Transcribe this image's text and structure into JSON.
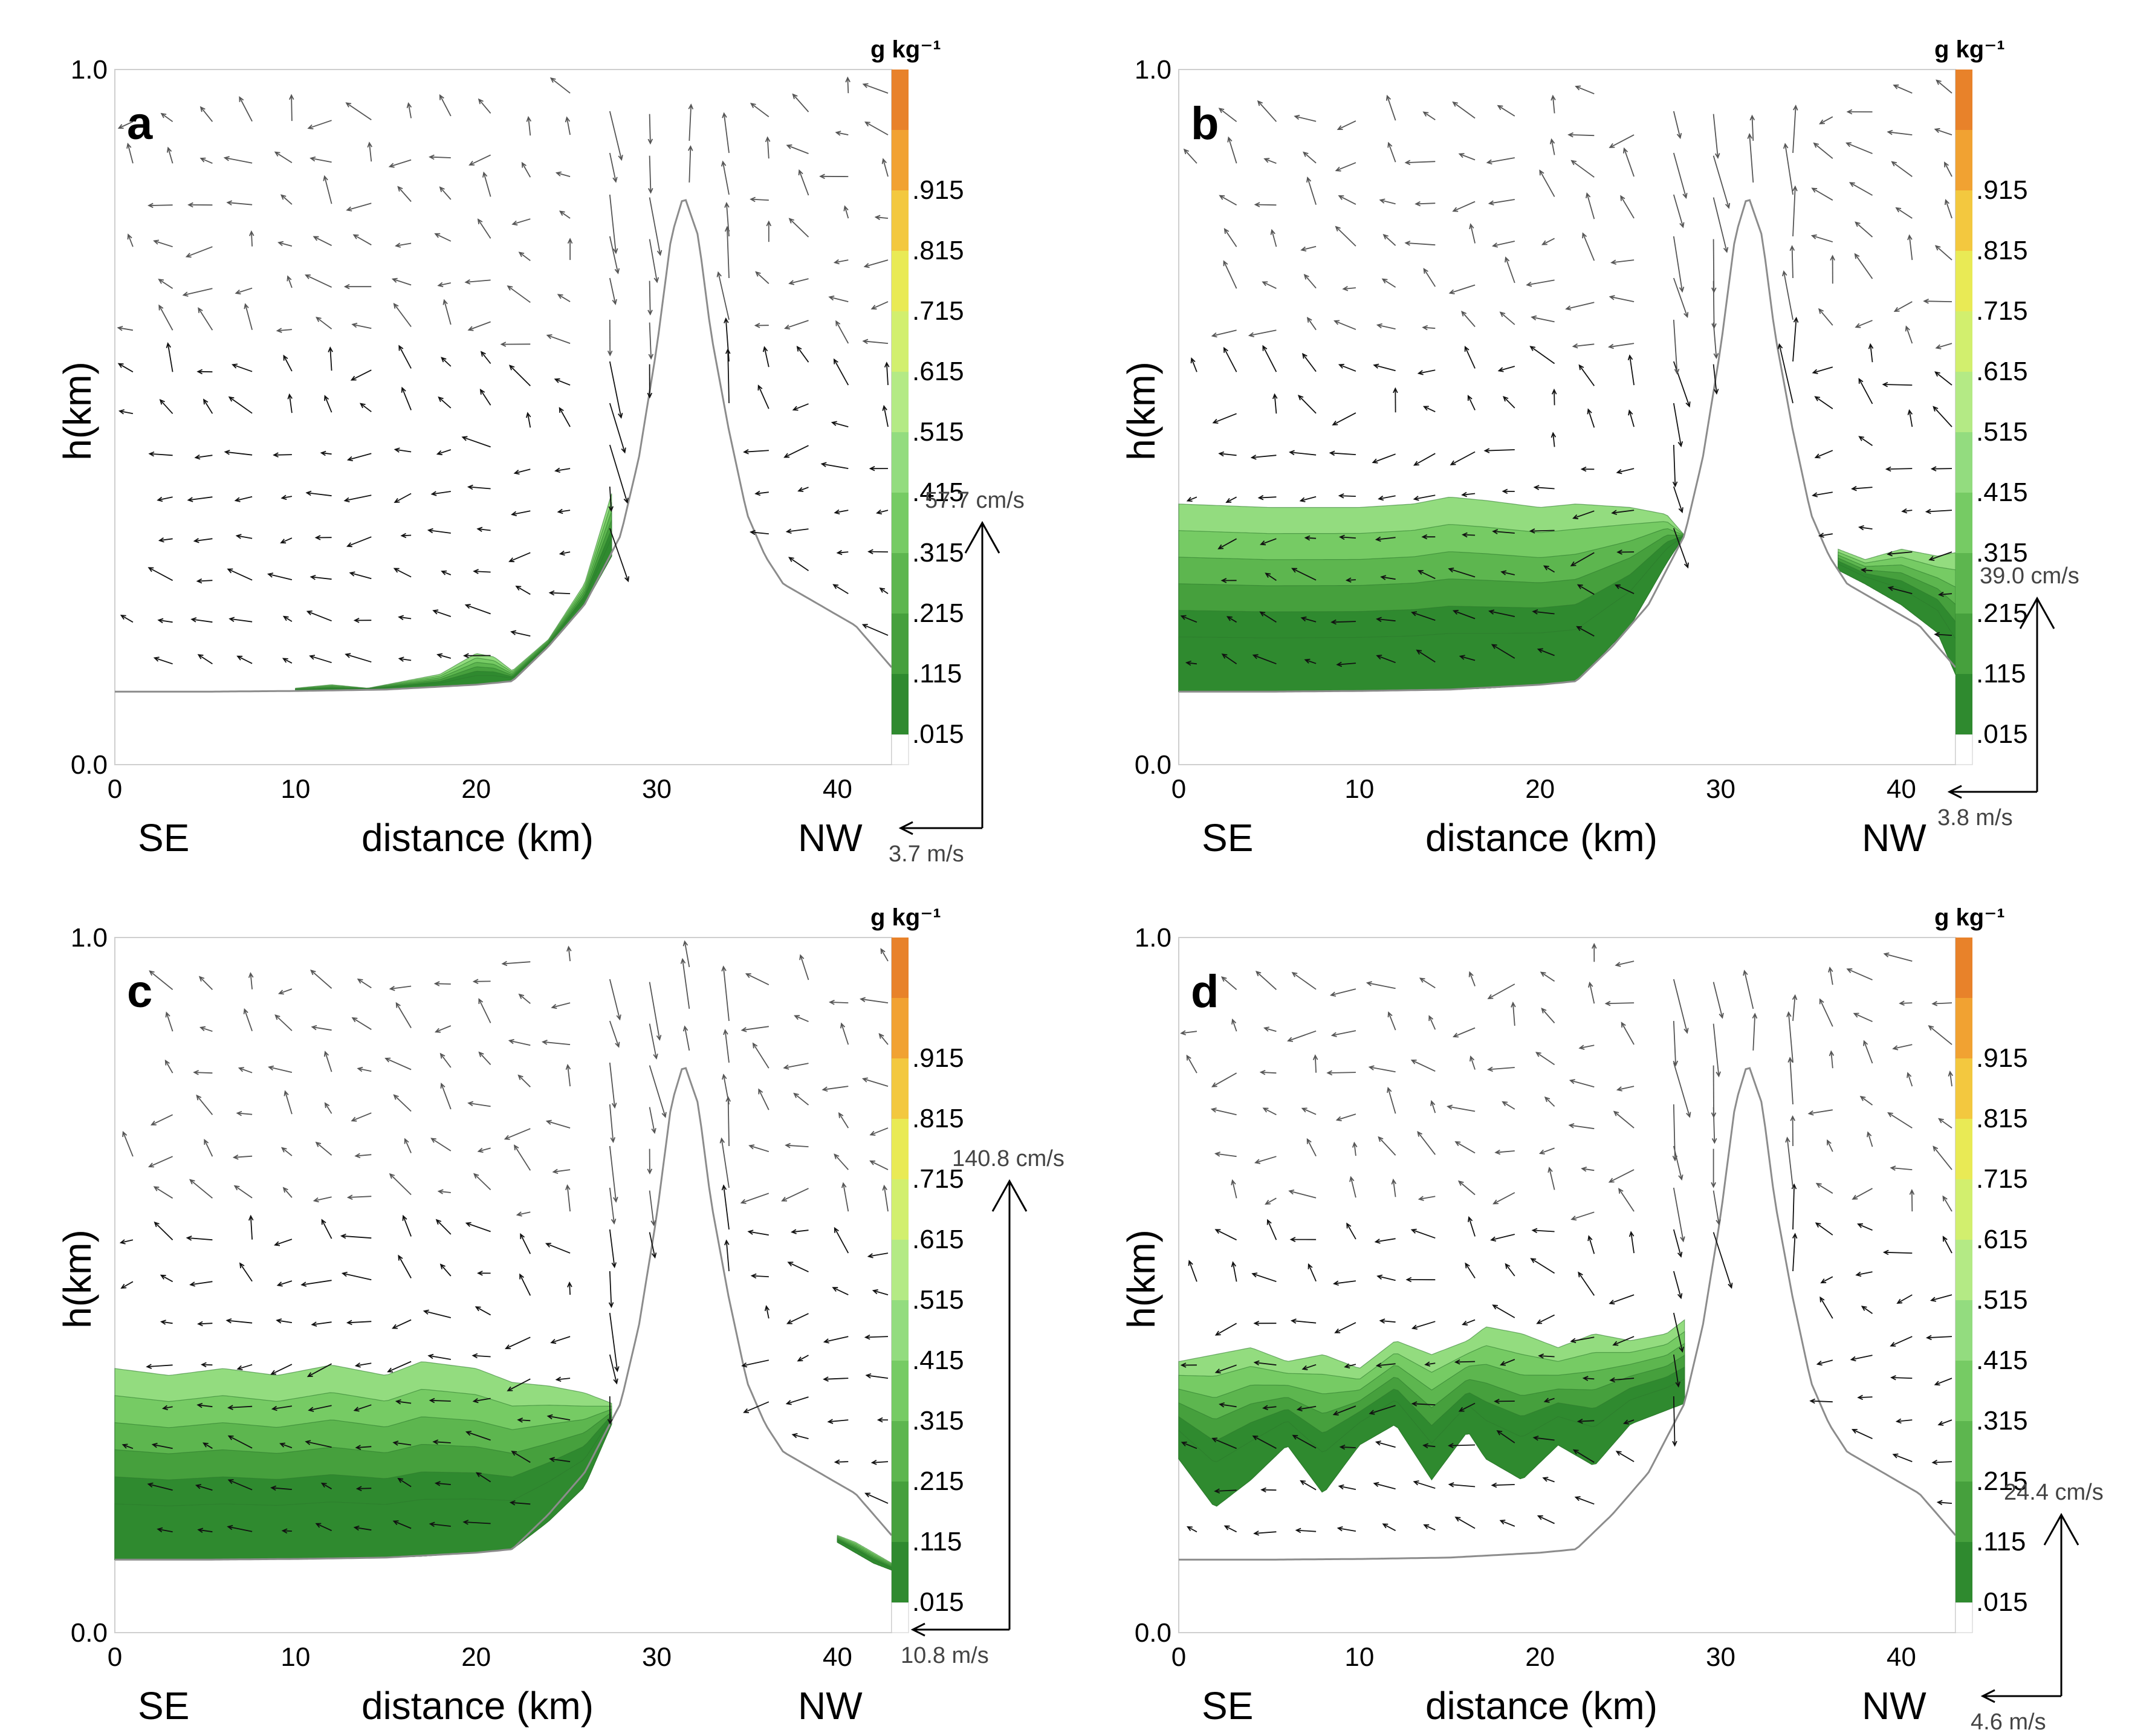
{
  "figure": {
    "panels": [
      {
        "letter": "a",
        "labels": {
          "ylabel": "h(km)",
          "xlabel": "distance (km)",
          "left_dir": "SE",
          "right_dir": "NW",
          "cbar_unit": "g  kg⁻¹",
          "vert_scale": "57.7 cm/s",
          "horiz_scale": "3.7 m/s"
        }
      },
      {
        "letter": "b",
        "labels": {
          "ylabel": "h(km)",
          "xlabel": "distance (km)",
          "left_dir": "SE",
          "right_dir": "NW",
          "cbar_unit": "g  kg⁻¹",
          "vert_scale": "39.0 cm/s",
          "horiz_scale": "3.8 m/s"
        }
      },
      {
        "letter": "c",
        "labels": {
          "ylabel": "h(km)",
          "xlabel": "distance (km)",
          "left_dir": "SE",
          "right_dir": "NW",
          "cbar_unit": "g  kg⁻¹",
          "vert_scale": "140.8 cm/s",
          "horiz_scale": "10.8 m/s"
        }
      },
      {
        "letter": "d",
        "labels": {
          "ylabel": "h(km)",
          "xlabel": "distance (km)",
          "left_dir": "SE",
          "right_dir": "NW",
          "cbar_unit": "g  kg⁻¹",
          "vert_scale": "24.4 cm/s",
          "horiz_scale": "4.6 m/s"
        }
      }
    ]
  },
  "colors": {
    "levels": [
      "#2f8a2f",
      "#46a03d",
      "#5db64f",
      "#76cb64",
      "#93dc7f",
      "#b4ea85",
      "#d2ef6e",
      "#e9ea55",
      "#f3c83f",
      "#f1a232",
      "#e8822a"
    ],
    "terrain": "#8c8c8c",
    "vector": "#111111",
    "vector_light": "#555555",
    "axis": "#cfcfcf"
  },
  "chart_data": [
    {
      "type": "contour",
      "panel": "a",
      "title": "a",
      "xlabel": "distance (km)",
      "ylabel": "h(km)",
      "xlim": [
        0,
        43
      ],
      "ylim": [
        0,
        1.0
      ],
      "x_ticks": [
        0,
        10,
        20,
        30,
        40
      ],
      "y_ticks": [
        "0.0",
        "1.0"
      ],
      "colorbar_unit": "g  kg⁻¹",
      "colorbar_levels": [
        ".015",
        ".115",
        ".215",
        ".315",
        ".415",
        ".515",
        ".615",
        ".715",
        ".815",
        ".915"
      ],
      "terrain": {
        "x": [
          0,
          5,
          10,
          15,
          20,
          22,
          24,
          26,
          28,
          29,
          30,
          30.8,
          31.5,
          32.3,
          33,
          34,
          35,
          36,
          37,
          38,
          39,
          40,
          41,
          42,
          43
        ],
        "h": [
          0.105,
          0.105,
          0.106,
          0.108,
          0.115,
          0.12,
          0.17,
          0.23,
          0.33,
          0.44,
          0.6,
          0.76,
          0.82,
          0.76,
          0.62,
          0.48,
          0.36,
          0.3,
          0.26,
          0.245,
          0.23,
          0.215,
          0.2,
          0.17,
          0.14
        ]
      },
      "cloud": {
        "x": [
          10,
          12,
          14,
          16,
          18,
          20,
          21,
          22,
          24,
          26,
          27.5
        ],
        "top": [
          0.11,
          0.115,
          0.11,
          0.12,
          0.13,
          0.16,
          0.155,
          0.135,
          0.18,
          0.26,
          0.39
        ],
        "bottom": [
          0.106,
          0.107,
          0.108,
          0.11,
          0.112,
          0.115,
          0.117,
          0.12,
          0.17,
          0.23,
          0.3
        ]
      },
      "vertical_scale": "57.7 cm/s",
      "horizontal_scale": "3.7 m/s"
    },
    {
      "type": "contour",
      "panel": "b",
      "title": "b",
      "xlabel": "distance (km)",
      "ylabel": "h(km)",
      "xlim": [
        0,
        43
      ],
      "ylim": [
        0,
        1.0
      ],
      "x_ticks": [
        0,
        10,
        20,
        30,
        40
      ],
      "y_ticks": [
        "0.0",
        "1.0"
      ],
      "colorbar_unit": "g  kg⁻¹",
      "colorbar_levels": [
        ".015",
        ".115",
        ".215",
        ".315",
        ".415",
        ".515",
        ".615",
        ".715",
        ".815",
        ".915"
      ],
      "terrain": {
        "x": [
          0,
          5,
          10,
          15,
          20,
          22,
          24,
          26,
          28,
          29,
          30,
          30.8,
          31.5,
          32.3,
          33,
          34,
          35,
          36,
          37,
          38,
          39,
          40,
          41,
          42,
          43
        ],
        "h": [
          0.105,
          0.105,
          0.106,
          0.108,
          0.115,
          0.12,
          0.17,
          0.23,
          0.33,
          0.44,
          0.6,
          0.76,
          0.82,
          0.76,
          0.62,
          0.48,
          0.36,
          0.3,
          0.26,
          0.245,
          0.23,
          0.215,
          0.2,
          0.17,
          0.14
        ]
      },
      "cloud": {
        "x": [
          0,
          5,
          10,
          13,
          15,
          17,
          20,
          22,
          25,
          27,
          28
        ],
        "top": [
          0.375,
          0.37,
          0.37,
          0.375,
          0.385,
          0.38,
          0.37,
          0.375,
          0.37,
          0.36,
          0.33
        ],
        "bottom": [
          0.105,
          0.105,
          0.106,
          0.107,
          0.108,
          0.11,
          0.115,
          0.12,
          0.2,
          0.29,
          0.33
        ]
      },
      "cloud2": {
        "x": [
          36.5,
          38,
          40,
          42,
          43
        ],
        "top": [
          0.31,
          0.295,
          0.31,
          0.3,
          0.305
        ],
        "bottom": [
          0.28,
          0.26,
          0.23,
          0.19,
          0.13
        ]
      },
      "vertical_scale": "39.0 cm/s",
      "horizontal_scale": "3.8 m/s"
    },
    {
      "type": "contour",
      "panel": "c",
      "title": "c",
      "xlabel": "distance (km)",
      "ylabel": "h(km)",
      "xlim": [
        0,
        43
      ],
      "ylim": [
        0,
        1.0
      ],
      "x_ticks": [
        0,
        10,
        20,
        30,
        40
      ],
      "y_ticks": [
        "0.0",
        "1.0"
      ],
      "colorbar_unit": "g  kg⁻¹",
      "colorbar_levels": [
        ".015",
        ".115",
        ".215",
        ".315",
        ".415",
        ".515",
        ".615",
        ".715",
        ".815",
        ".915"
      ],
      "terrain": {
        "x": [
          0,
          5,
          10,
          15,
          20,
          22,
          24,
          26,
          28,
          29,
          30,
          30.8,
          31.5,
          32.3,
          33,
          34,
          35,
          36,
          37,
          38,
          39,
          40,
          41,
          42,
          43
        ],
        "h": [
          0.105,
          0.105,
          0.106,
          0.108,
          0.115,
          0.12,
          0.17,
          0.23,
          0.33,
          0.44,
          0.6,
          0.76,
          0.82,
          0.76,
          0.62,
          0.48,
          0.36,
          0.3,
          0.26,
          0.245,
          0.23,
          0.215,
          0.2,
          0.17,
          0.14
        ]
      },
      "cloud": {
        "x": [
          0,
          3,
          6,
          9,
          12,
          15,
          17,
          20,
          22,
          24,
          26,
          27.5
        ],
        "top": [
          0.38,
          0.37,
          0.38,
          0.37,
          0.385,
          0.37,
          0.39,
          0.38,
          0.36,
          0.355,
          0.345,
          0.33
        ],
        "bottom": [
          0.105,
          0.105,
          0.105,
          0.106,
          0.107,
          0.108,
          0.11,
          0.115,
          0.12,
          0.16,
          0.21,
          0.3
        ]
      },
      "cloud2": {
        "x": [
          40,
          41,
          42,
          43
        ],
        "top": [
          0.14,
          0.13,
          0.115,
          0.1
        ],
        "bottom": [
          0.13,
          0.115,
          0.1,
          0.09
        ]
      },
      "vertical_scale": "140.8 cm/s",
      "horizontal_scale": "10.8 m/s"
    },
    {
      "type": "contour",
      "panel": "d",
      "title": "d",
      "xlabel": "distance (km)",
      "ylabel": "h(km)",
      "xlim": [
        0,
        43
      ],
      "ylim": [
        0,
        1.0
      ],
      "x_ticks": [
        0,
        10,
        20,
        30,
        40
      ],
      "y_ticks": [
        "0.0",
        "1.0"
      ],
      "colorbar_unit": "g  kg⁻¹",
      "colorbar_levels": [
        ".015",
        ".115",
        ".215",
        ".315",
        ".415",
        ".515",
        ".615",
        ".715",
        ".815",
        ".915"
      ],
      "terrain": {
        "x": [
          0,
          5,
          10,
          15,
          20,
          22,
          24,
          26,
          28,
          29,
          30,
          30.8,
          31.5,
          32.3,
          33,
          34,
          35,
          36,
          37,
          38,
          39,
          40,
          41,
          42,
          43
        ],
        "h": [
          0.105,
          0.105,
          0.106,
          0.108,
          0.115,
          0.12,
          0.17,
          0.23,
          0.33,
          0.44,
          0.6,
          0.76,
          0.82,
          0.76,
          0.62,
          0.48,
          0.36,
          0.3,
          0.26,
          0.245,
          0.23,
          0.215,
          0.2,
          0.17,
          0.14
        ]
      },
      "cloud": {
        "x": [
          0,
          2,
          4,
          6,
          8,
          10,
          12,
          14,
          16,
          17,
          19,
          21,
          23,
          25,
          27,
          28
        ],
        "top": [
          0.39,
          0.4,
          0.41,
          0.39,
          0.4,
          0.38,
          0.42,
          0.4,
          0.42,
          0.44,
          0.43,
          0.41,
          0.43,
          0.42,
          0.43,
          0.45
        ],
        "bottom": [
          0.25,
          0.18,
          0.22,
          0.27,
          0.2,
          0.27,
          0.3,
          0.22,
          0.29,
          0.25,
          0.22,
          0.27,
          0.24,
          0.3,
          0.32,
          0.33
        ]
      },
      "vertical_scale": "24.4 cm/s",
      "horizontal_scale": "4.6 m/s"
    }
  ]
}
